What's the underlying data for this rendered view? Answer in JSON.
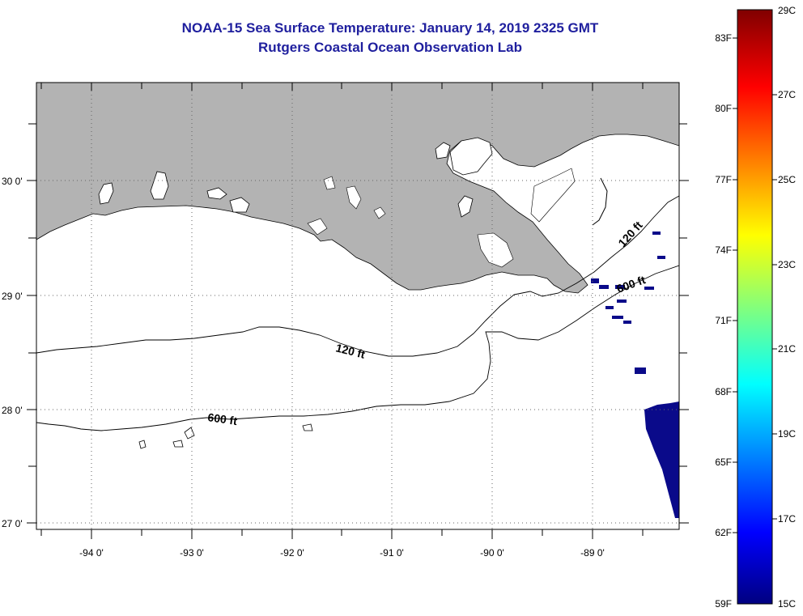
{
  "title": "NOAA-15 Sea Surface Temperature:  January 14, 2019 2325 GMT",
  "subtitle": "Rutgers Coastal Ocean Observation Lab",
  "colors": {
    "land": "#b3b3b3",
    "ocean_data": "#0a0a8a",
    "title": "#1f1f9e",
    "gridline": "#444444"
  },
  "longitude_labels": [
    "-94 0'",
    "-93 0'",
    "-92 0'",
    "-91 0'",
    "-90 0'",
    "-89 0'"
  ],
  "latitude_labels": [
    "30 0'",
    "29 0'",
    "28 0'",
    "27 0'"
  ],
  "contour_labels": [
    "120 ft",
    "120 ft",
    "600 ft",
    "600 ft"
  ],
  "colorbar": {
    "fahrenheit": [
      "83F",
      "80F",
      "77F",
      "74F",
      "71F",
      "68F",
      "65F",
      "62F",
      "59F"
    ],
    "celsius": [
      "29C",
      "27C",
      "25C",
      "23C",
      "21C",
      "19C",
      "17C",
      "15C"
    ],
    "range_c": [
      15,
      29
    ]
  }
}
